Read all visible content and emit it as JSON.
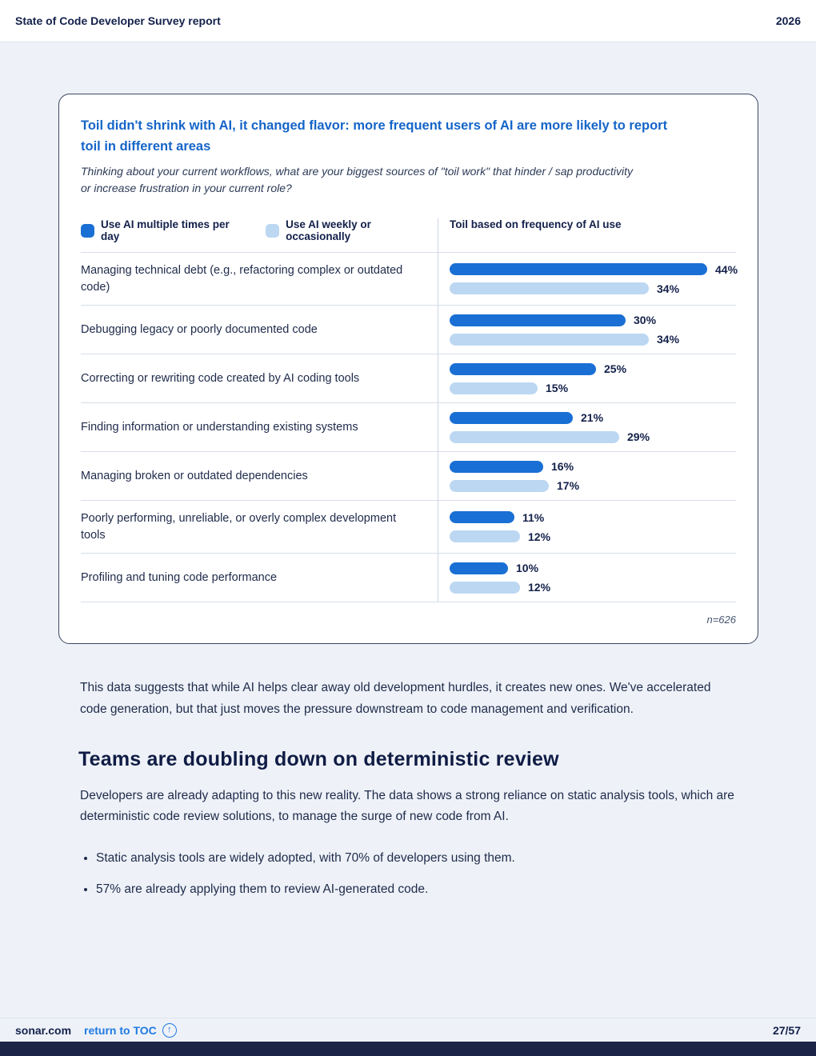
{
  "header": {
    "title": "State of Code Developer Survey report",
    "year": "2026"
  },
  "card": {
    "title": "Toil didn't shrink with AI, it changed flavor: more frequent users of AI are more likely to report toil in different areas",
    "subtitle": "Thinking about your current workflows, what are your biggest sources of \"toil work\" that hinder / sap productivity or increase frustration in your current role?",
    "column_header": "Toil based on frequency of AI use",
    "note": "n=626"
  },
  "chart_data": {
    "type": "bar",
    "orientation": "horizontal",
    "title": "Toil based on frequency of AI use",
    "categories": [
      "Managing technical debt (e.g., refactoring complex or outdated code)",
      "Debugging legacy or poorly documented code",
      "Correcting or rewriting code created by AI coding tools",
      "Finding information or understanding existing systems",
      "Managing broken or outdated dependencies",
      "Poorly performing, unreliable, or overly complex development tools",
      "Profiling and tuning code performance"
    ],
    "series": [
      {
        "name": "Use AI multiple times per day",
        "color": "#1a6fd4",
        "values": [
          44,
          30,
          25,
          21,
          16,
          11,
          10
        ]
      },
      {
        "name": "Use AI weekly or occasionally",
        "color": "#bcd7f2",
        "values": [
          34,
          34,
          15,
          29,
          17,
          12,
          12
        ]
      }
    ],
    "value_suffix": "%",
    "xlim": [
      0,
      44
    ],
    "sample_note": "n=626",
    "legend_position": "top-left",
    "grid": false
  },
  "body": {
    "paragraph1": "This data suggests that while AI helps clear away old development hurdles, it creates new ones. We've accelerated code generation, but that just moves the pressure downstream to code management and verification.",
    "heading": "Teams are doubling down on deterministic review",
    "paragraph2": "Developers are already adapting to this new reality. The data shows a strong reliance on static analysis tools, which are deterministic code review solutions, to manage the surge of new code from AI.",
    "bullets": [
      "Static analysis tools are widely adopted, with 70% of developers using them.",
      "57% are already applying them to review AI-generated code."
    ]
  },
  "footer": {
    "site": "sonar.com",
    "toc_link": "return to TOC",
    "page": "27/57"
  }
}
